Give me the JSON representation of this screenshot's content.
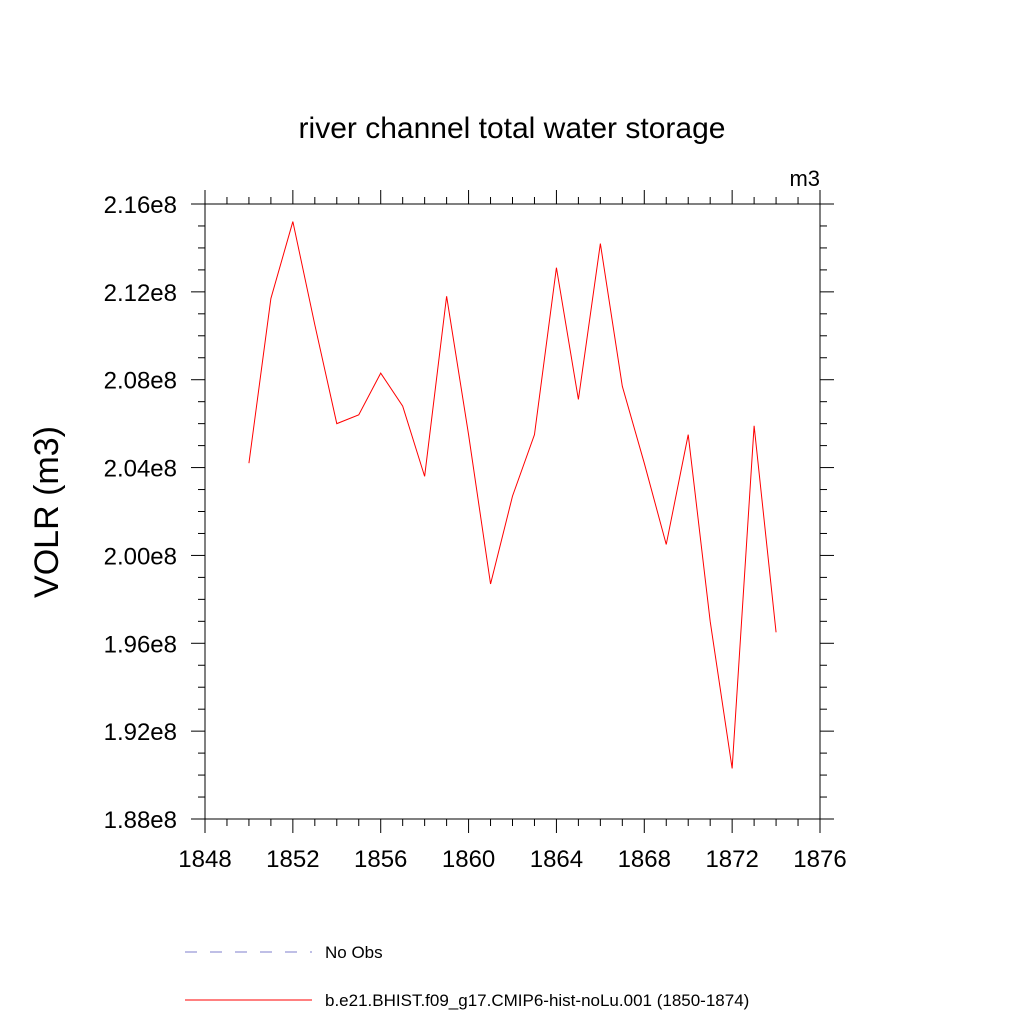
{
  "chart_data": {
    "type": "line",
    "title": "river channel total water storage",
    "units_label": "m3",
    "ylabel": "VOLR  (m3)",
    "xlabel": "",
    "xlim": [
      1848,
      1876
    ],
    "ylim": [
      188000000,
      216000000
    ],
    "x_ticks": [
      1848,
      1852,
      1856,
      1860,
      1864,
      1868,
      1872,
      1876
    ],
    "x_tick_labels": [
      "1848",
      "1852",
      "1856",
      "1860",
      "1864",
      "1868",
      "1872",
      "1876"
    ],
    "y_ticks": [
      188000000,
      192000000,
      196000000,
      200000000,
      204000000,
      208000000,
      212000000,
      216000000
    ],
    "y_tick_labels": [
      "1.88e8",
      "1.92e8",
      "1.96e8",
      "2.00e8",
      "2.04e8",
      "2.08e8",
      "2.12e8",
      "2.16e8"
    ],
    "grid": false,
    "legend_position": "bottom",
    "series": [
      {
        "name": "b.e21.BHIST.f09_g17.CMIP6-hist-noLu.001 (1850-1874)",
        "color": "#ff0000",
        "dash": "solid",
        "x": [
          1850,
          1851,
          1852,
          1853,
          1854,
          1855,
          1856,
          1857,
          1858,
          1859,
          1860,
          1861,
          1862,
          1863,
          1864,
          1865,
          1866,
          1867,
          1868,
          1869,
          1870,
          1871,
          1872,
          1873,
          1874
        ],
        "y": [
          204200000,
          211700000,
          215200000,
          210500000,
          206000000,
          206400000,
          208300000,
          206800000,
          203600000,
          211800000,
          205500000,
          198700000,
          202700000,
          205500000,
          213100000,
          207100000,
          214200000,
          207700000,
          204200000,
          200500000,
          205500000,
          197000000,
          190300000,
          205900000,
          196500000
        ]
      }
    ],
    "legend": [
      {
        "label": "No Obs",
        "color": "#7f7fcc",
        "dash": "dashed"
      },
      {
        "label": "b.e21.BHIST.f09_g17.CMIP6-hist-noLu.001 (1850-1874)",
        "color": "#ff0000",
        "dash": "solid"
      }
    ]
  }
}
